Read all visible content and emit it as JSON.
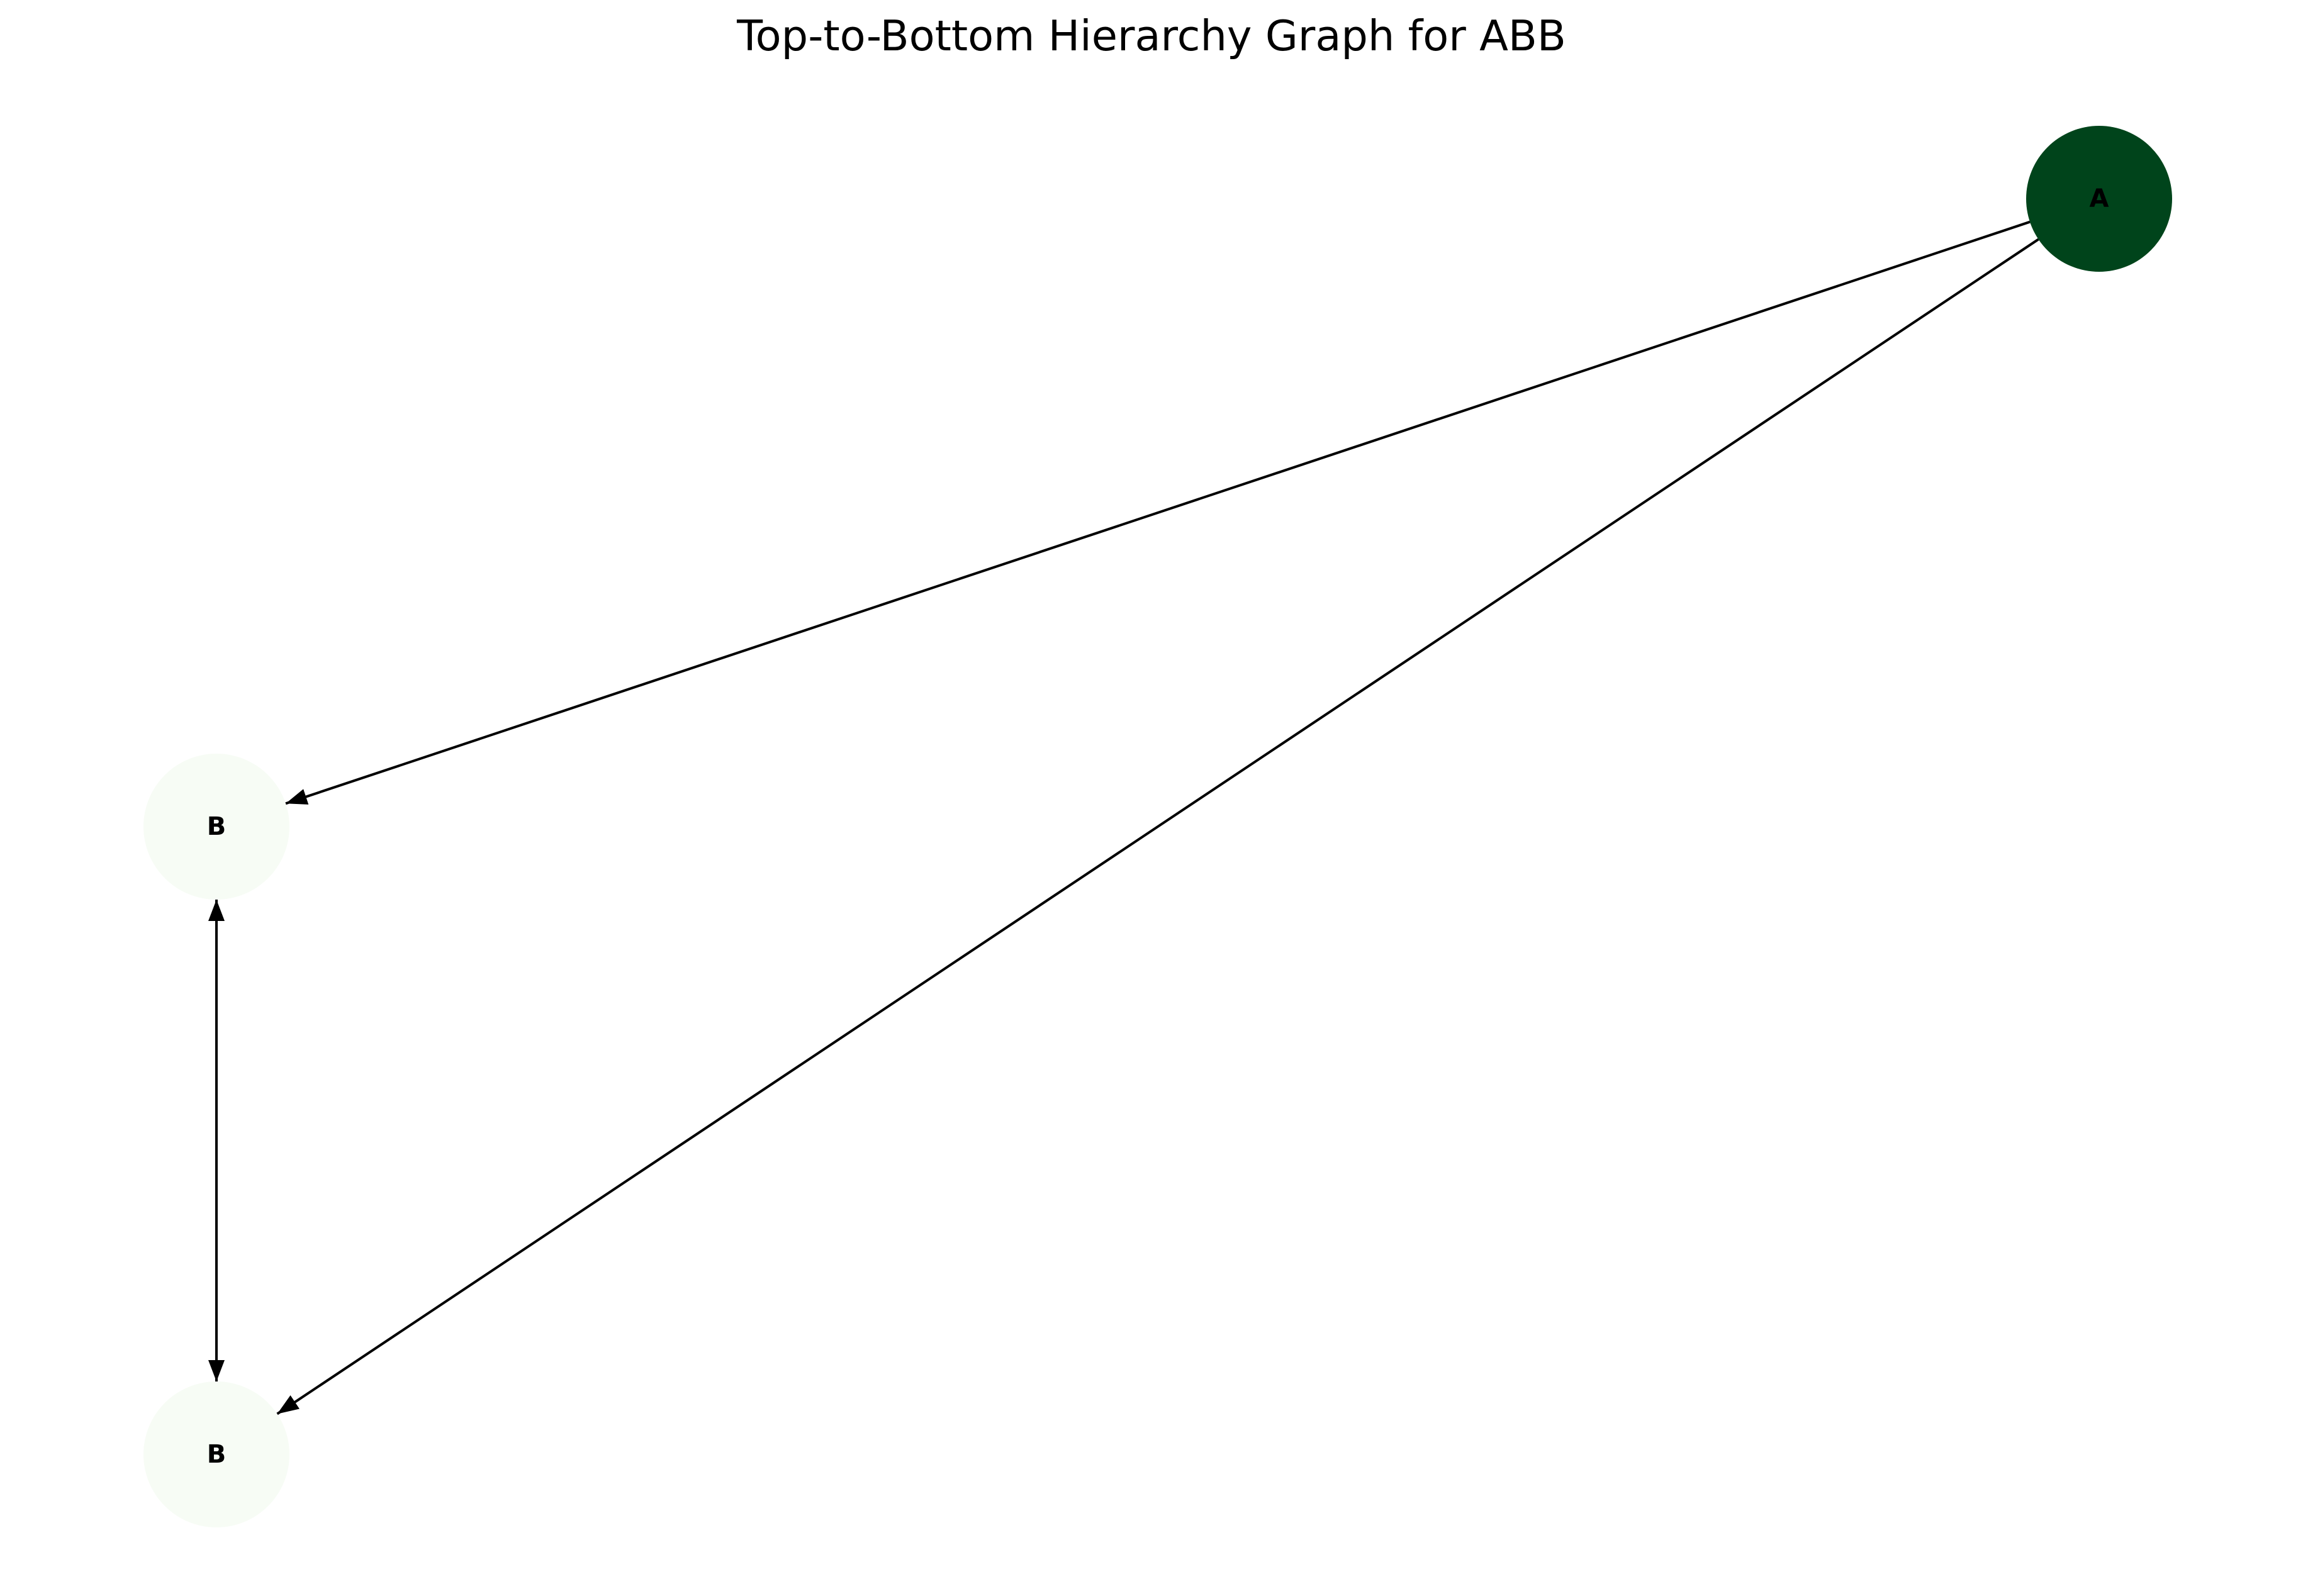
{
  "title": "Top-to-Bottom Hierarchy Graph for ABB",
  "graph": {
    "nodes": [
      {
        "id": "n_a",
        "label": "A",
        "color": "#00441b"
      },
      {
        "id": "n_b1",
        "label": "B",
        "color": "#f7fcf5"
      },
      {
        "id": "n_b2",
        "label": "B",
        "color": "#f7fcf5"
      }
    ],
    "edges": [
      {
        "id": "e_a_b1",
        "from": "n_a",
        "to": "n_b1",
        "directed": "forward"
      },
      {
        "id": "e_a_b2",
        "from": "n_a",
        "to": "n_b2",
        "directed": "forward"
      },
      {
        "id": "e_b1_b2",
        "from": "n_b1",
        "to": "n_b2",
        "directed": "both"
      }
    ],
    "edge_color": "#000000"
  }
}
